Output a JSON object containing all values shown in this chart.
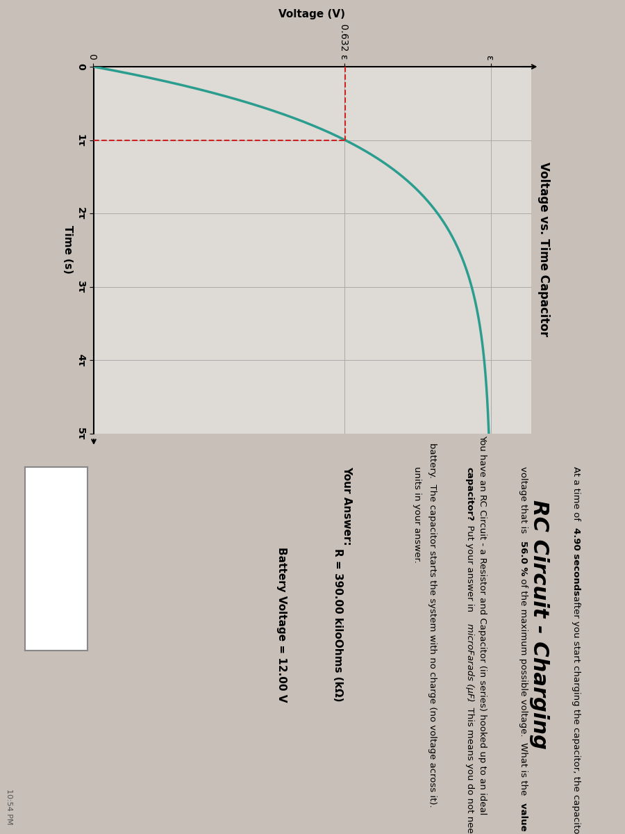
{
  "title": "RC Circuit - Charging",
  "subtitle_line1": "You have an RC Circuit - a Resistor and Capacitor (in series) hooked up to an ideal",
  "subtitle_line2": "battery.  The capacitor starts the system with no charge (no voltage across it).",
  "chart_title": "Voltage vs. Time Capacitor",
  "xlabel": "Time (s)",
  "ylabel": "Voltage (V)",
  "x_ticks": [
    "0",
    "1τ",
    "2τ",
    "3τ",
    "4τ",
    "5τ"
  ],
  "y_tick_vals": [
    0.0,
    0.6321,
    1.0
  ],
  "y_ticks_labels": [
    "0",
    "0.632 ε",
    "ε"
  ],
  "R_label": "R = 390.00 kiloOhms (kΩ)",
  "battery_label": "Battery Voltage = 12.00 V",
  "answer_label": "Your Answer:",
  "curve_color": "#2a9d8f",
  "dashed_color": "#cc2222",
  "grid_color": "#aaaaaa",
  "bg_color": "#c8c0b8",
  "plot_bg_color": "#dedad5",
  "tau": 1.0,
  "E": 1.0,
  "n_points": 500,
  "tau_max": 5.0,
  "timestamp": "10:54 PM"
}
